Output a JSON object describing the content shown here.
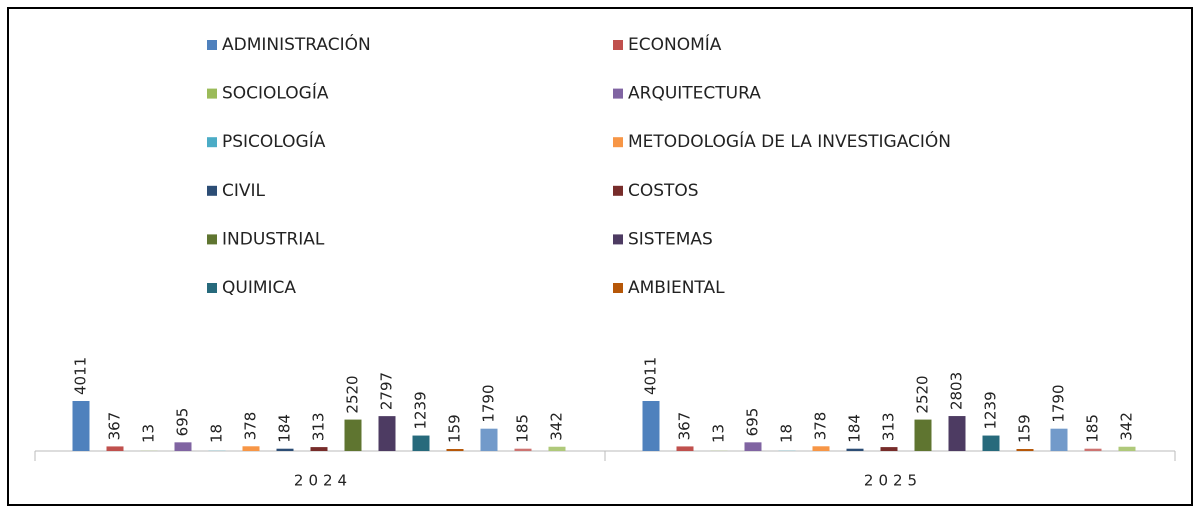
{
  "chart_data": {
    "type": "bar",
    "categories": [
      "2024",
      "2025"
    ],
    "series": [
      {
        "name": "ADMINISTRACIÓN",
        "color": "#4f81bd",
        "values": [
          4011,
          4011
        ]
      },
      {
        "name": "ECONOMÍA",
        "color": "#c0504d",
        "values": [
          367,
          367
        ]
      },
      {
        "name": "SOCIOLOGÍA",
        "color": "#9bbb59",
        "values": [
          13,
          13
        ]
      },
      {
        "name": "ARQUITECTURA",
        "color": "#8064a2",
        "values": [
          695,
          695
        ]
      },
      {
        "name": "PSICOLOGÍA",
        "color": "#4bacc6",
        "values": [
          18,
          18
        ]
      },
      {
        "name": "METODOLOGÍA DE LA INVESTIGACIÓN",
        "color": "#f79646",
        "values": [
          378,
          378
        ]
      },
      {
        "name": "CIVIL",
        "color": "#2c4d75",
        "values": [
          184,
          184
        ]
      },
      {
        "name": "COSTOS",
        "color": "#772c2a",
        "values": [
          313,
          313
        ]
      },
      {
        "name": "INDUSTRIAL",
        "color": "#5f7530",
        "values": [
          2520,
          2520
        ]
      },
      {
        "name": "SISTEMAS",
        "color": "#4d3b62",
        "values": [
          2797,
          2803
        ]
      },
      {
        "name": "QUIMICA",
        "color": "#276a7c",
        "values": [
          1239,
          1239
        ]
      },
      {
        "name": "AMBIENTAL",
        "color": "#b65708",
        "values": [
          159,
          159
        ]
      },
      {
        "color": "#729aca",
        "values": [
          1790,
          1790
        ]
      },
      {
        "color": "#cd7371",
        "values": [
          185,
          185
        ]
      },
      {
        "color": "#afc97a",
        "values": [
          342,
          342
        ]
      }
    ]
  }
}
